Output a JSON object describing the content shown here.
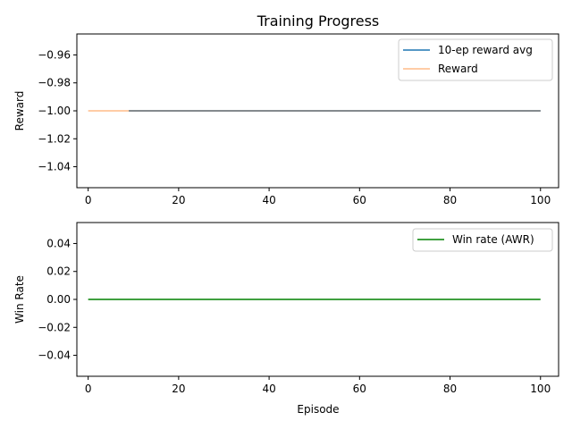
{
  "chart_data": [
    {
      "type": "line",
      "title": "Training Progress",
      "xlabel": "",
      "ylabel": "Reward",
      "xlim": [
        -2.5,
        104
      ],
      "ylim": [
        -1.055,
        -0.945
      ],
      "xticks": [
        0,
        20,
        40,
        60,
        80,
        100
      ],
      "xtick_labels": [
        "0",
        "20",
        "40",
        "60",
        "80",
        "100"
      ],
      "yticks": [
        -0.96,
        -0.98,
        -1.0,
        -1.02,
        -1.04
      ],
      "ytick_labels": [
        "−0.96",
        "−0.98",
        "−1.00",
        "−1.02",
        "−1.04"
      ],
      "grid": false,
      "legend_position": "top-right",
      "series": [
        {
          "name": "10-ep reward avg",
          "color": "#1f77b4",
          "x": [
            9,
            100
          ],
          "values": [
            -1.0,
            -1.0
          ]
        },
        {
          "name": "Reward",
          "color": "#ffbb88",
          "x": [
            0,
            100
          ],
          "values": [
            -1.0,
            -1.0
          ]
        }
      ]
    },
    {
      "type": "line",
      "title": "",
      "xlabel": "Episode",
      "ylabel": "Win Rate",
      "xlim": [
        -2.5,
        104
      ],
      "ylim": [
        -0.055,
        0.055
      ],
      "xticks": [
        0,
        20,
        40,
        60,
        80,
        100
      ],
      "xtick_labels": [
        "0",
        "20",
        "40",
        "60",
        "80",
        "100"
      ],
      "yticks": [
        0.04,
        0.02,
        0.0,
        -0.02,
        -0.04
      ],
      "ytick_labels": [
        "0.04",
        "0.02",
        "0.00",
        "−0.02",
        "−0.04"
      ],
      "grid": false,
      "legend_position": "top-right",
      "series": [
        {
          "name": "Win rate (AWR)",
          "color": "#008000",
          "x": [
            0,
            100
          ],
          "values": [
            0.0,
            0.0
          ]
        }
      ]
    }
  ]
}
